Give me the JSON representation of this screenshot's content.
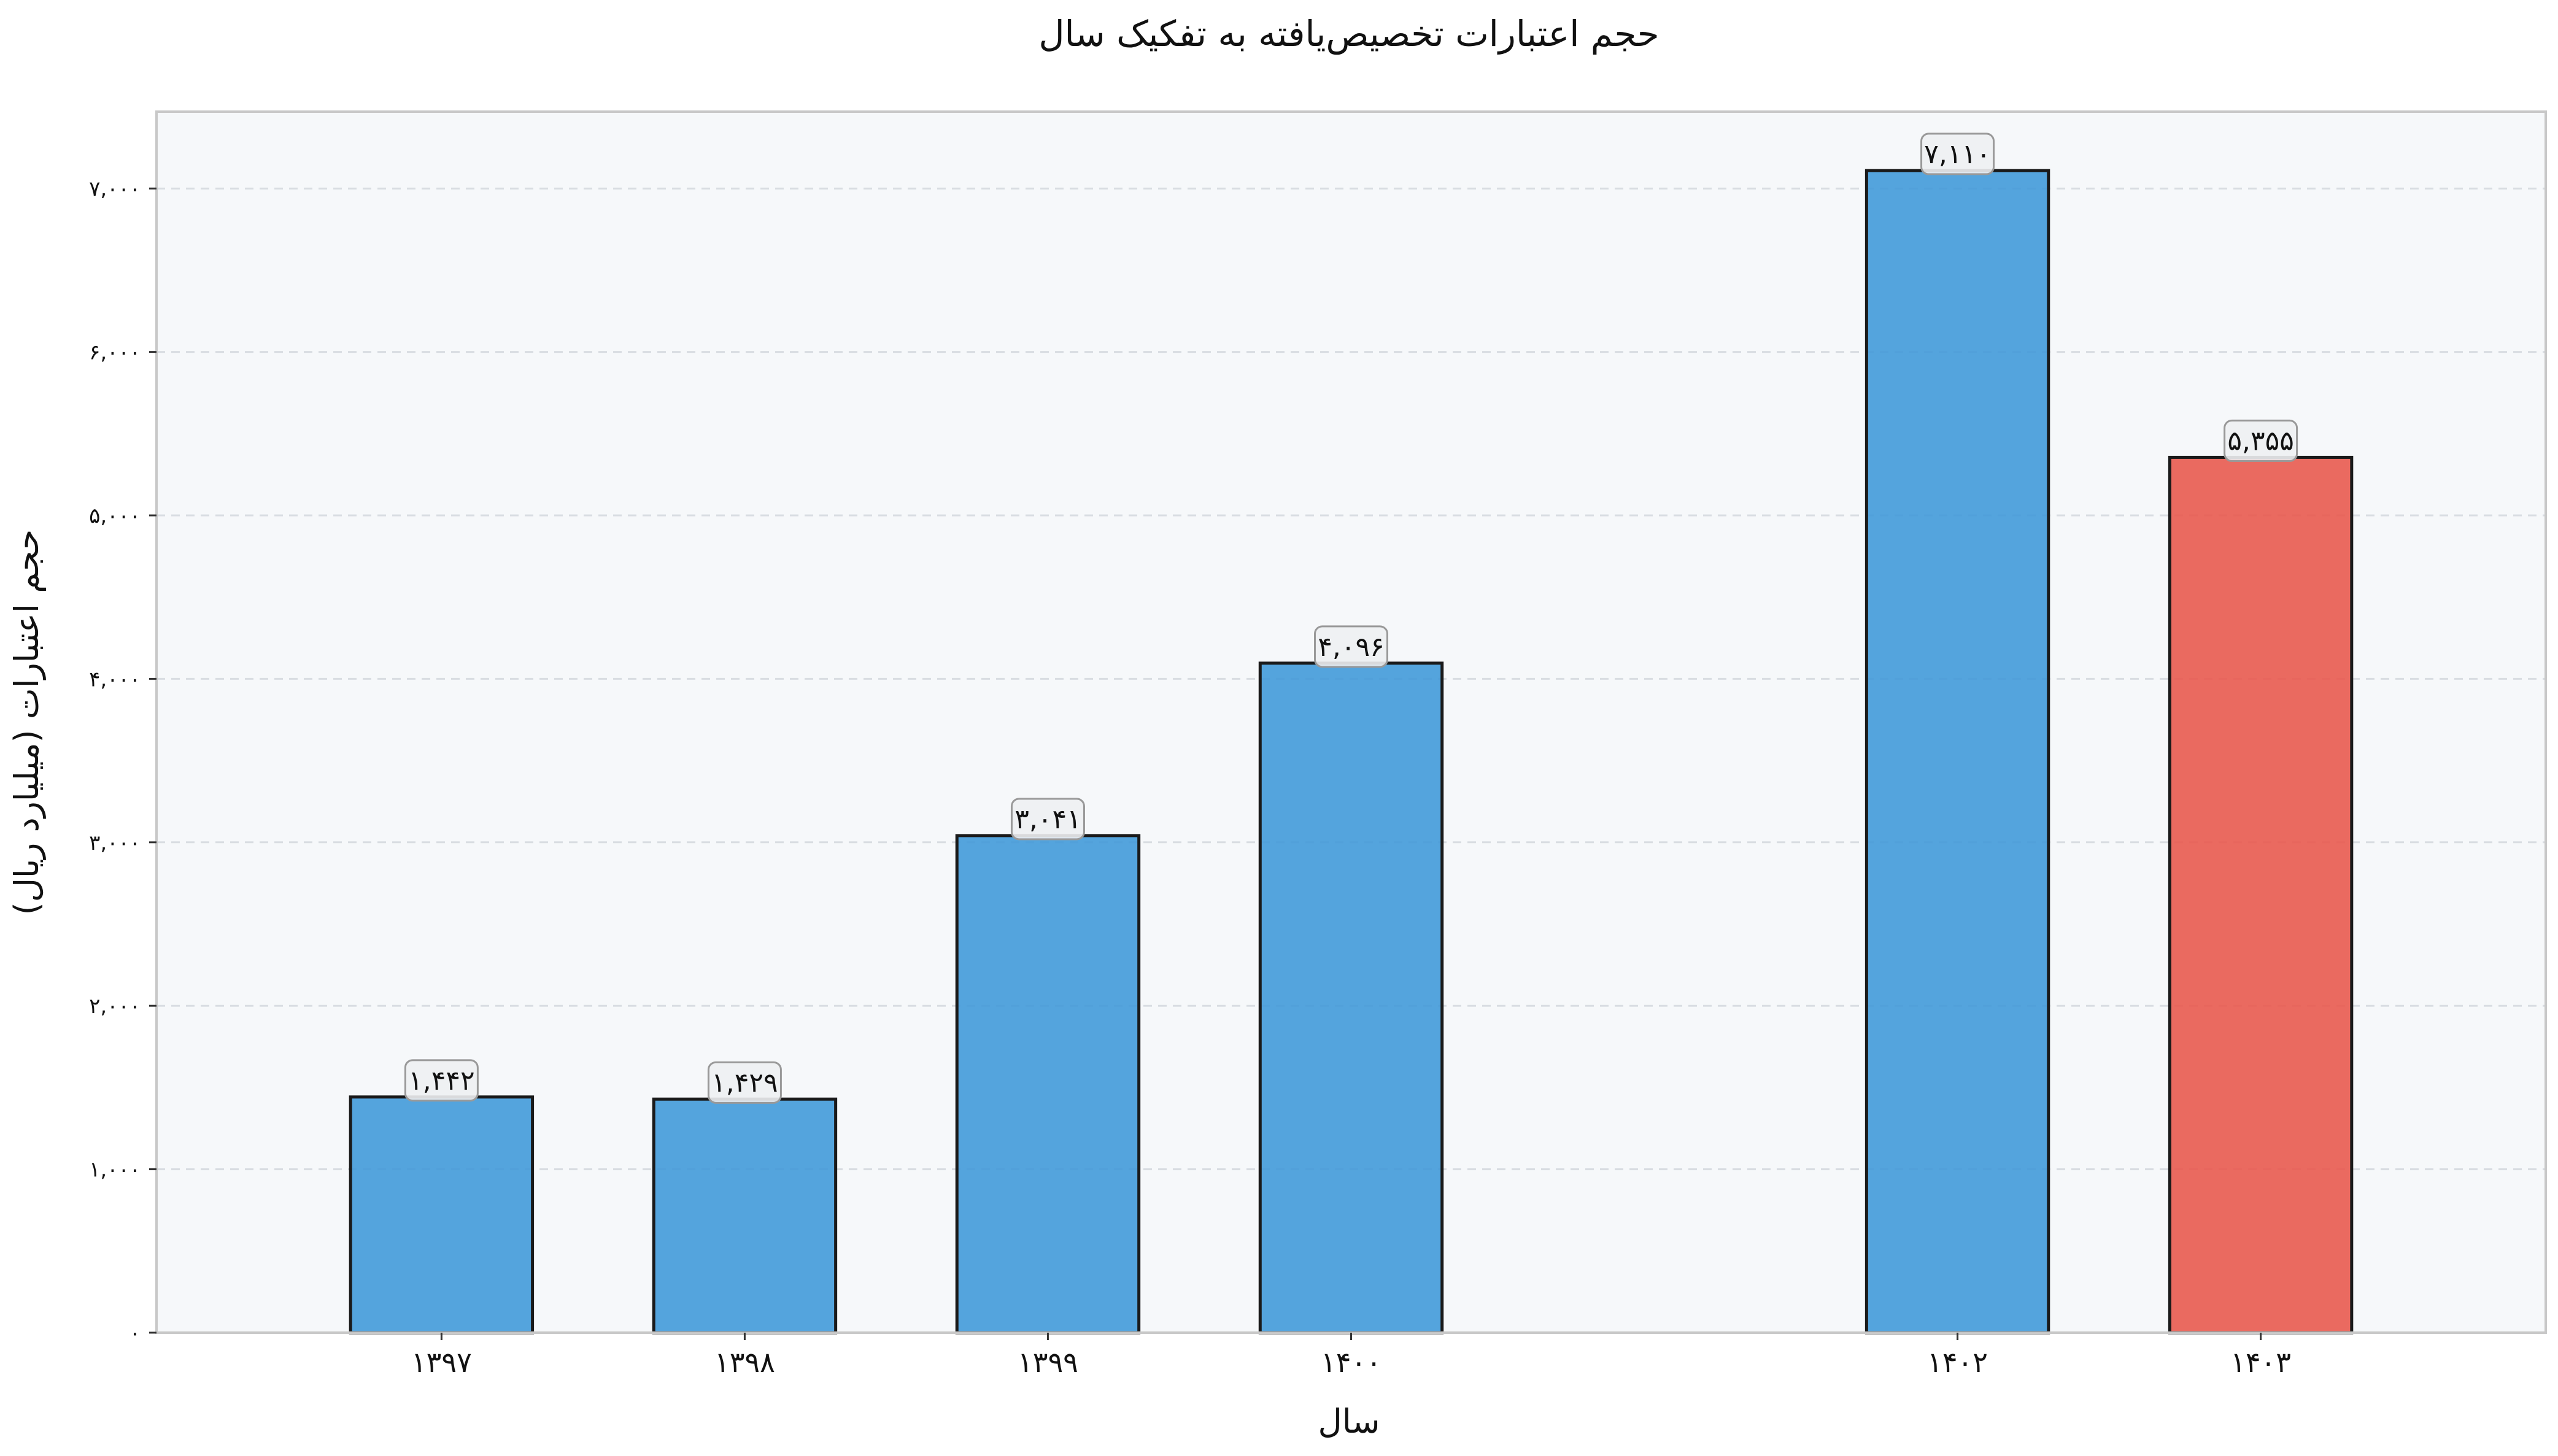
{
  "chart_data": {
    "type": "bar",
    "title": "حجم اعتبارات تخصیص‌یافته به تفکیک سال",
    "xlabel": "سال",
    "ylabel": "حجم اعتبارات (میلیارد ریال)",
    "categories": [
      "۱۳۹۷",
      "۱۳۹۸",
      "۱۳۹۹",
      "۱۴۰۰",
      "۱۴۰۲",
      "۱۴۰۳"
    ],
    "x": [
      1397,
      1398,
      1399,
      1400,
      1402,
      1403
    ],
    "values": [
      1442,
      1429,
      3041,
      4096,
      7110,
      5355
    ],
    "value_labels": [
      "۱,۴۴۲",
      "۱,۴۲۹",
      "۳,۰۴۱",
      "۴,۰۹۶",
      "۷,۱۱۰",
      "۵,۳۵۵"
    ],
    "bar_colors": [
      "#3d97d8",
      "#3d97d8",
      "#3d97d8",
      "#3d97d8",
      "#3d97d8",
      "#e8554a"
    ],
    "ylim": [
      0,
      7470
    ],
    "xlim": [
      1396.06,
      1403.94
    ],
    "yticks": [
      0,
      1000,
      2000,
      3000,
      4000,
      5000,
      6000,
      7000
    ],
    "ytick_labels": [
      "۰",
      "۱,۰۰۰",
      "۲,۰۰۰",
      "۳,۰۰۰",
      "۴,۰۰۰",
      "۵,۰۰۰",
      "۶,۰۰۰",
      "۷,۰۰۰"
    ],
    "grid": "y-dashed",
    "plot_background": "#f6f8fa"
  }
}
